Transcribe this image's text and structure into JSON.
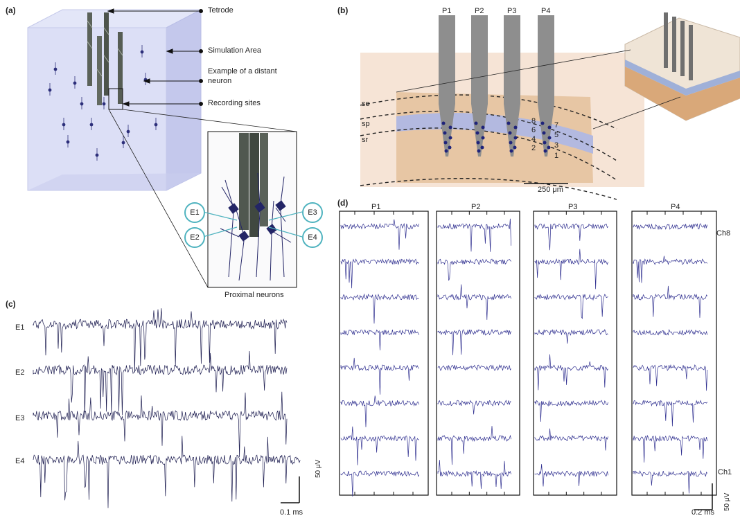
{
  "panels": {
    "a": {
      "label": "(a)",
      "annotations": {
        "tetrode": "Tetrode",
        "simulation_area": "Simulation Area",
        "distant_neuron_line1": "Example of a distant",
        "distant_neuron_line2": "neuron",
        "recording_sites": "Recording sites"
      },
      "electrodes": [
        "E1",
        "E2",
        "E3",
        "E4"
      ],
      "inset_caption": "Proximal neurons"
    },
    "b": {
      "label": "(b)",
      "probes": [
        "P1",
        "P2",
        "P3",
        "P4"
      ],
      "layers": [
        "so",
        "sp",
        "sr"
      ],
      "site_numbers_left": [
        "8",
        "6",
        "4",
        "2"
      ],
      "site_numbers_right": [
        "7",
        "5",
        "3",
        "1"
      ],
      "scale_bar": "250 μm"
    },
    "c": {
      "label": "(c)",
      "traces": [
        "E1",
        "E2",
        "E3",
        "E4"
      ],
      "scale_y": "50 μV",
      "scale_x": "0.1 ms",
      "trace_color": "#1a1a4e"
    },
    "d": {
      "label": "(d)",
      "probes": [
        "P1",
        "P2",
        "P3",
        "P4"
      ],
      "top_channel": "Ch8",
      "bottom_channel": "Ch1",
      "scale_y": "50 μV",
      "scale_x": "0.2 ms",
      "trace_color": "#2e2e8f"
    }
  },
  "colors": {
    "electrode_ring": "#4fb3bf",
    "neuron": "#1f1f5c",
    "cube": "#c9cdf0",
    "tissue": "#f6e4d6",
    "tissue_dark": "#e7c6a4",
    "pyramidal_band": "#b3b9e0",
    "probe": "#8e8e8e",
    "site": "#1f237a"
  }
}
